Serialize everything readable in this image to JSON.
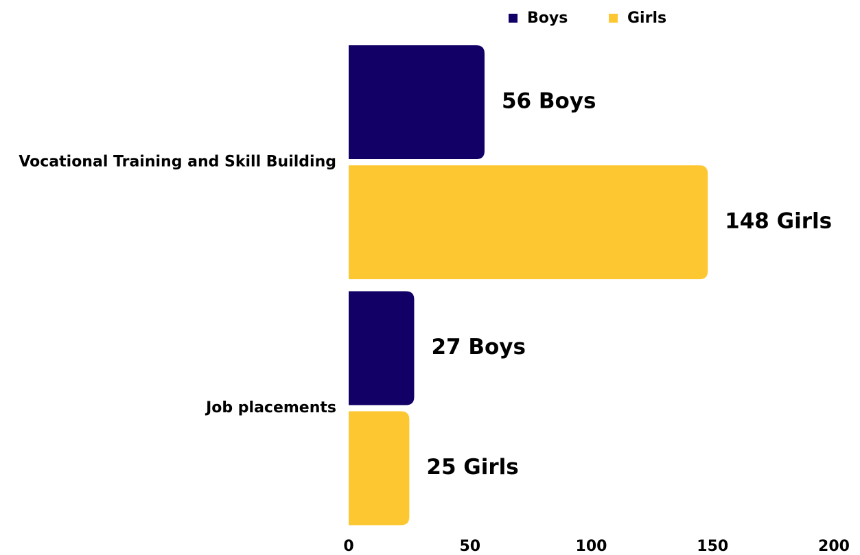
{
  "chart_data": {
    "type": "barh",
    "categories": [
      "Vocational Training and Skill Building",
      "Job placements"
    ],
    "series": [
      {
        "name": "Boys",
        "color": "#120066",
        "values": [
          56,
          27
        ],
        "value_labels": [
          "56 Boys",
          "27 Boys"
        ]
      },
      {
        "name": "Girls",
        "color": "#fdc731",
        "values": [
          148,
          25
        ],
        "value_labels": [
          "148 Girls",
          "25 Girls"
        ]
      }
    ],
    "xlim": [
      0,
      200
    ],
    "xticks": [
      0,
      50,
      100,
      150,
      200
    ],
    "grid": false,
    "legend": "top"
  }
}
